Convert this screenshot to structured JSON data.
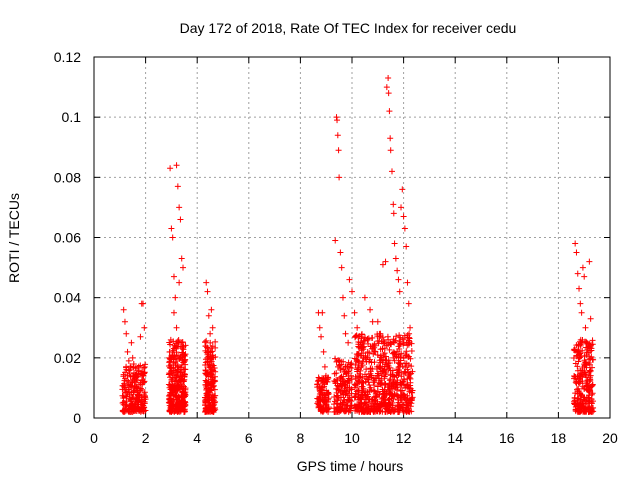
{
  "chart_data": {
    "type": "scatter",
    "title": "Day 172 of 2018, Rate Of TEC Index for receiver cedu",
    "xlabel": "GPS time / hours",
    "ylabel": "ROTI / TECUs",
    "xlim": [
      0,
      20
    ],
    "ylim": [
      0,
      0.12
    ],
    "x_ticks": [
      0,
      2,
      4,
      6,
      8,
      10,
      12,
      14,
      16,
      18,
      20
    ],
    "x_tick_labels": [
      "0",
      "2",
      "4",
      "6",
      "8",
      "10",
      "12",
      "14",
      "16",
      "18",
      "20"
    ],
    "y_ticks": [
      0,
      0.02,
      0.04,
      0.06,
      0.08,
      0.1,
      0.12
    ],
    "y_tick_labels": [
      "0",
      "0.02",
      "0.04",
      "0.06",
      "0.08",
      "0.1",
      "0.12"
    ],
    "grid": true,
    "marker": "+",
    "marker_color": "#ff0000",
    "series": [
      {
        "name": "ROTI",
        "points": [
          [
            1.15,
            0.036
          ],
          [
            1.2,
            0.032
          ],
          [
            1.25,
            0.028
          ],
          [
            1.3,
            0.022
          ],
          [
            1.35,
            0.019
          ],
          [
            1.4,
            0.016
          ],
          [
            1.45,
            0.025
          ],
          [
            1.5,
            0.02
          ],
          [
            1.55,
            0.015
          ],
          [
            1.6,
            0.012
          ],
          [
            1.65,
            0.01
          ],
          [
            1.7,
            0.014
          ],
          [
            1.75,
            0.009
          ],
          [
            1.8,
            0.027
          ],
          [
            1.85,
            0.038
          ],
          [
            1.9,
            0.038
          ],
          [
            1.95,
            0.03
          ],
          [
            1.2,
            0.01
          ],
          [
            1.3,
            0.008
          ],
          [
            1.6,
            0.006
          ],
          [
            2.95,
            0.083
          ],
          [
            3.0,
            0.063
          ],
          [
            3.05,
            0.06
          ],
          [
            3.1,
            0.047
          ],
          [
            3.15,
            0.04
          ],
          [
            3.2,
            0.084
          ],
          [
            3.25,
            0.077
          ],
          [
            3.3,
            0.07
          ],
          [
            3.35,
            0.066
          ],
          [
            3.4,
            0.053
          ],
          [
            3.45,
            0.05
          ],
          [
            3.1,
            0.035
          ],
          [
            3.2,
            0.03
          ],
          [
            3.3,
            0.045
          ],
          [
            3.4,
            0.025
          ],
          [
            3.45,
            0.02
          ],
          [
            3.0,
            0.015
          ],
          [
            3.2,
            0.01
          ],
          [
            4.35,
            0.045
          ],
          [
            4.4,
            0.042
          ],
          [
            4.45,
            0.034
          ],
          [
            4.5,
            0.028
          ],
          [
            4.55,
            0.036
          ],
          [
            4.6,
            0.03
          ],
          [
            4.4,
            0.02
          ],
          [
            4.5,
            0.015
          ],
          [
            4.55,
            0.01
          ],
          [
            8.7,
            0.035
          ],
          [
            8.75,
            0.03
          ],
          [
            8.8,
            0.027
          ],
          [
            8.85,
            0.035
          ],
          [
            8.9,
            0.022
          ],
          [
            8.95,
            0.017
          ],
          [
            9.05,
            0.012
          ],
          [
            9.1,
            0.008
          ],
          [
            9.35,
            0.059
          ],
          [
            9.4,
            0.1
          ],
          [
            9.42,
            0.099
          ],
          [
            9.45,
            0.094
          ],
          [
            9.48,
            0.089
          ],
          [
            9.5,
            0.08
          ],
          [
            9.55,
            0.055
          ],
          [
            9.6,
            0.05
          ],
          [
            9.65,
            0.04
          ],
          [
            9.7,
            0.034
          ],
          [
            9.75,
            0.028
          ],
          [
            9.85,
            0.025
          ],
          [
            9.9,
            0.046
          ],
          [
            10.0,
            0.042
          ],
          [
            10.1,
            0.035
          ],
          [
            10.2,
            0.03
          ],
          [
            10.5,
            0.04
          ],
          [
            10.7,
            0.036
          ],
          [
            10.8,
            0.032
          ],
          [
            11.0,
            0.032
          ],
          [
            11.1,
            0.028
          ],
          [
            11.2,
            0.051
          ],
          [
            11.3,
            0.052
          ],
          [
            11.35,
            0.11
          ],
          [
            11.4,
            0.113
          ],
          [
            11.42,
            0.108
          ],
          [
            11.45,
            0.102
          ],
          [
            11.48,
            0.093
          ],
          [
            11.5,
            0.089
          ],
          [
            11.55,
            0.082
          ],
          [
            11.6,
            0.071
          ],
          [
            11.62,
            0.068
          ],
          [
            11.65,
            0.058
          ],
          [
            11.7,
            0.053
          ],
          [
            11.75,
            0.049
          ],
          [
            11.8,
            0.046
          ],
          [
            11.85,
            0.042
          ],
          [
            11.9,
            0.07
          ],
          [
            11.95,
            0.076
          ],
          [
            12.0,
            0.067
          ],
          [
            12.05,
            0.063
          ],
          [
            12.1,
            0.057
          ],
          [
            12.15,
            0.045
          ],
          [
            12.2,
            0.038
          ],
          [
            12.25,
            0.03
          ],
          [
            11.4,
            0.026
          ],
          [
            11.6,
            0.02
          ],
          [
            11.8,
            0.015
          ],
          [
            12.0,
            0.012
          ],
          [
            12.2,
            0.01
          ],
          [
            11.2,
            0.008
          ],
          [
            10.9,
            0.006
          ],
          [
            18.65,
            0.058
          ],
          [
            18.7,
            0.055
          ],
          [
            18.75,
            0.048
          ],
          [
            18.8,
            0.043
          ],
          [
            18.85,
            0.038
          ],
          [
            18.9,
            0.035
          ],
          [
            18.95,
            0.05
          ],
          [
            19.0,
            0.047
          ],
          [
            19.05,
            0.03
          ],
          [
            19.1,
            0.025
          ],
          [
            19.2,
            0.052
          ],
          [
            19.25,
            0.033
          ],
          [
            18.8,
            0.02
          ],
          [
            18.9,
            0.015
          ],
          [
            19.0,
            0.01
          ],
          [
            18.75,
            0.008
          ]
        ]
      }
    ],
    "clusters": [
      {
        "x_start": 1.1,
        "x_end": 2.0,
        "y_max": 0.018,
        "n": 220
      },
      {
        "x_start": 2.9,
        "x_end": 3.55,
        "y_max": 0.026,
        "n": 320
      },
      {
        "x_start": 4.3,
        "x_end": 4.7,
        "y_max": 0.026,
        "n": 200
      },
      {
        "x_start": 8.65,
        "x_end": 9.1,
        "y_max": 0.014,
        "n": 110
      },
      {
        "x_start": 9.3,
        "x_end": 10.0,
        "y_max": 0.02,
        "n": 160
      },
      {
        "x_start": 10.1,
        "x_end": 12.35,
        "y_max": 0.028,
        "n": 650
      },
      {
        "x_start": 18.6,
        "x_end": 19.35,
        "y_max": 0.026,
        "n": 260
      }
    ]
  }
}
